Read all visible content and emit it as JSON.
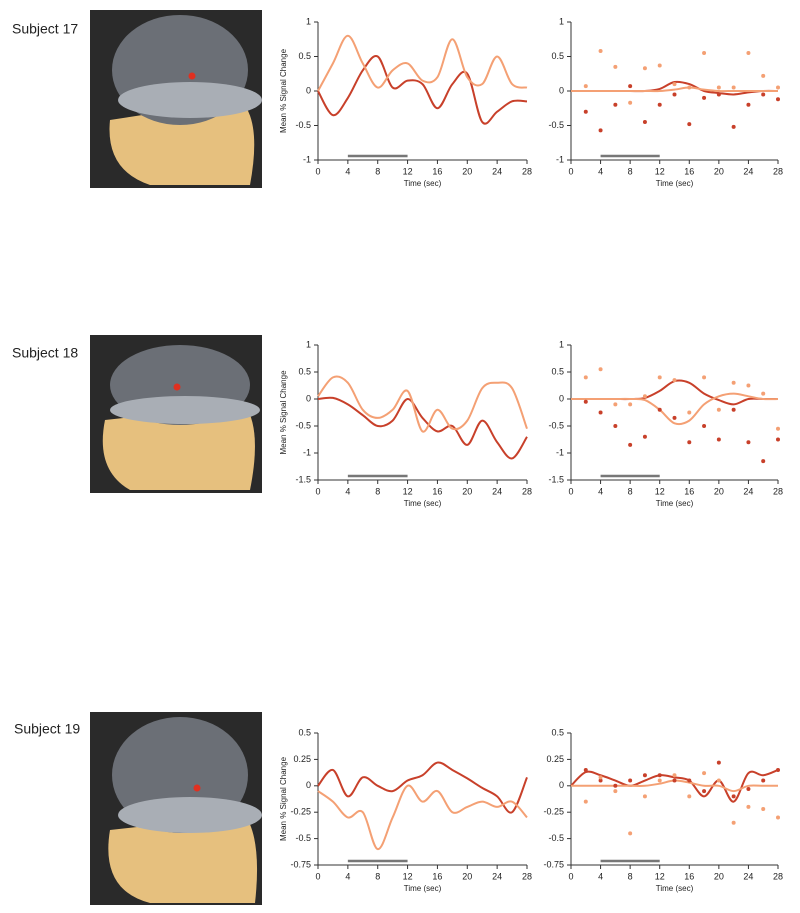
{
  "subjects": [
    "Subject 17",
    "Subject 18",
    "Subject 19"
  ],
  "chart_data": [
    {
      "type": "line",
      "xlabel": "Time (sec)",
      "ylabel": "Mean % Signal Change",
      "x": [
        0,
        2,
        4,
        6,
        8,
        10,
        12,
        14,
        16,
        18,
        20,
        22,
        24,
        26,
        28
      ],
      "xlim": [
        0,
        28
      ],
      "xticks": [
        0,
        4,
        8,
        12,
        16,
        20,
        24,
        28
      ],
      "ylim": [
        -1,
        1
      ],
      "yticks": [
        -1,
        -0.5,
        0,
        0.5,
        1
      ],
      "stimulus": [
        4,
        12
      ],
      "series": [
        {
          "color": "#c8402a",
          "mode": "line",
          "values": [
            0,
            -0.35,
            -0.1,
            0.3,
            0.5,
            0.05,
            0.15,
            0.1,
            -0.25,
            0.1,
            0.25,
            -0.45,
            -0.3,
            -0.15,
            -0.15
          ]
        },
        {
          "color": "#f4a074",
          "mode": "line",
          "values": [
            0,
            0.4,
            0.8,
            0.4,
            0.05,
            0.3,
            0.4,
            0.15,
            0.2,
            0.75,
            0.2,
            0.1,
            0.5,
            0.1,
            0.05
          ]
        }
      ]
    },
    {
      "type": "line",
      "xlabel": "Time (sec)",
      "x": [
        0,
        2,
        4,
        6,
        8,
        10,
        12,
        14,
        16,
        18,
        20,
        22,
        24,
        26,
        28
      ],
      "xlim": [
        0,
        28
      ],
      "xticks": [
        0,
        4,
        8,
        12,
        16,
        20,
        24,
        28
      ],
      "ylim": [
        -1,
        1
      ],
      "yticks": [
        -1,
        -0.5,
        0,
        0.5,
        1
      ],
      "stimulus": [
        4,
        12
      ],
      "series": [
        {
          "color": "#c8402a",
          "mode": "line",
          "values": [
            0,
            0,
            0,
            0,
            0,
            0,
            0.03,
            0.13,
            0.1,
            0,
            -0.03,
            -0.05,
            -0.02,
            0,
            0
          ]
        },
        {
          "color": "#f4a074",
          "mode": "line",
          "values": [
            0,
            0,
            0,
            0,
            0,
            0,
            0,
            0.02,
            0.05,
            0.02,
            0,
            0,
            0,
            0,
            0
          ]
        },
        {
          "color": "#c8402a",
          "mode": "markers",
          "values": [
            null,
            -0.3,
            -0.57,
            -0.2,
            0.07,
            -0.45,
            -0.2,
            -0.05,
            -0.48,
            -0.1,
            -0.05,
            -0.52,
            -0.2,
            -0.05,
            -0.12
          ]
        },
        {
          "color": "#f4a074",
          "mode": "markers",
          "values": [
            null,
            0.07,
            0.58,
            0.35,
            -0.17,
            0.33,
            0.37,
            0.1,
            0.05,
            0.55,
            0.05,
            0.05,
            0.55,
            0.22,
            0.05
          ]
        }
      ]
    },
    {
      "type": "line",
      "xlabel": "Time (sec)",
      "ylabel": "Mean % Signal Change",
      "x": [
        0,
        2,
        4,
        6,
        8,
        10,
        12,
        14,
        16,
        18,
        20,
        22,
        24,
        26,
        28
      ],
      "xlim": [
        0,
        28
      ],
      "xticks": [
        0,
        4,
        8,
        12,
        16,
        20,
        24,
        28
      ],
      "ylim": [
        -1.5,
        1
      ],
      "yticks": [
        -1.5,
        -1,
        -0.5,
        0,
        0.5,
        1
      ],
      "stimulus": [
        4,
        12
      ],
      "series": [
        {
          "color": "#c8402a",
          "mode": "line",
          "values": [
            0,
            0.02,
            -0.1,
            -0.3,
            -0.5,
            -0.4,
            0,
            -0.35,
            -0.6,
            -0.5,
            -0.85,
            -0.4,
            -0.8,
            -1.1,
            -0.7
          ]
        },
        {
          "color": "#f4a074",
          "mode": "line",
          "values": [
            0.05,
            0.4,
            0.3,
            -0.2,
            -0.35,
            -0.2,
            0.15,
            -0.6,
            -0.2,
            -0.55,
            -0.4,
            0.2,
            0.3,
            0.2,
            -0.55
          ]
        }
      ]
    },
    {
      "type": "line",
      "xlabel": "Time (sec)",
      "x": [
        0,
        2,
        4,
        6,
        8,
        10,
        12,
        14,
        16,
        18,
        20,
        22,
        24,
        26,
        28
      ],
      "xlim": [
        0,
        28
      ],
      "xticks": [
        0,
        4,
        8,
        12,
        16,
        20,
        24,
        28
      ],
      "ylim": [
        -1.5,
        1
      ],
      "yticks": [
        -1.5,
        -1,
        -0.5,
        0,
        0.5,
        1
      ],
      "stimulus": [
        4,
        12
      ],
      "series": [
        {
          "color": "#c8402a",
          "mode": "line",
          "values": [
            0,
            0,
            0,
            0,
            0,
            0.02,
            0.15,
            0.33,
            0.3,
            0.1,
            -0.02,
            -0.1,
            0,
            0,
            0
          ]
        },
        {
          "color": "#f4a074",
          "mode": "line",
          "values": [
            0,
            0,
            0,
            0,
            0,
            -0.02,
            -0.2,
            -0.45,
            -0.4,
            -0.1,
            0.05,
            0.1,
            0.05,
            0,
            0
          ]
        },
        {
          "color": "#c8402a",
          "mode": "markers",
          "values": [
            null,
            -0.05,
            -0.25,
            -0.5,
            -0.85,
            -0.7,
            -0.2,
            -0.35,
            -0.8,
            -0.5,
            -0.75,
            -0.2,
            -0.8,
            -1.15,
            -0.75
          ]
        },
        {
          "color": "#f4a074",
          "mode": "markers",
          "values": [
            null,
            0.4,
            0.55,
            -0.1,
            -0.1,
            0.05,
            0.4,
            0.35,
            -0.25,
            0.4,
            -0.2,
            0.3,
            0.25,
            0.1,
            -0.55
          ]
        }
      ]
    },
    {
      "type": "line",
      "xlabel": "Time (sec)",
      "ylabel": "Mean % Signal Change",
      "x": [
        0,
        2,
        4,
        6,
        8,
        10,
        12,
        14,
        16,
        18,
        20,
        22,
        24,
        26,
        28
      ],
      "xlim": [
        0,
        28
      ],
      "xticks": [
        0,
        4,
        8,
        12,
        16,
        20,
        24,
        28
      ],
      "ylim": [
        -0.75,
        0.5
      ],
      "yticks": [
        -0.75,
        -0.5,
        -0.25,
        0,
        0.25,
        0.5
      ],
      "stimulus": [
        4,
        12
      ],
      "series": [
        {
          "color": "#c8402a",
          "mode": "line",
          "values": [
            0,
            0.15,
            -0.1,
            0.08,
            0,
            -0.05,
            0.05,
            0.1,
            0.22,
            0.15,
            0.07,
            -0.02,
            -0.1,
            -0.25,
            0.08
          ]
        },
        {
          "color": "#f4a074",
          "mode": "line",
          "values": [
            -0.05,
            -0.15,
            -0.3,
            -0.25,
            -0.6,
            -0.3,
            0,
            -0.15,
            -0.05,
            -0.25,
            -0.2,
            -0.15,
            -0.2,
            -0.15,
            -0.3
          ]
        }
      ]
    },
    {
      "type": "line",
      "xlabel": "Time (sec)",
      "x": [
        0,
        2,
        4,
        6,
        8,
        10,
        12,
        14,
        16,
        18,
        20,
        22,
        24,
        26,
        28
      ],
      "xlim": [
        0,
        28
      ],
      "xticks": [
        0,
        4,
        8,
        12,
        16,
        20,
        24,
        28
      ],
      "ylim": [
        -0.75,
        0.5
      ],
      "yticks": [
        -0.75,
        -0.5,
        -0.25,
        0,
        0.25,
        0.5
      ],
      "stimulus": [
        4,
        12
      ],
      "series": [
        {
          "color": "#c8402a",
          "mode": "line",
          "values": [
            0,
            0.13,
            0.1,
            0.05,
            0,
            0.05,
            0.1,
            0.08,
            0.05,
            -0.1,
            0.05,
            -0.15,
            0.12,
            0.1,
            0.15
          ]
        },
        {
          "color": "#f4a074",
          "mode": "line",
          "values": [
            0,
            0,
            0,
            0,
            0,
            0,
            0.02,
            0.05,
            0.03,
            0,
            0,
            -0.05,
            0,
            0,
            0
          ]
        },
        {
          "color": "#c8402a",
          "mode": "markers",
          "values": [
            null,
            0.15,
            0.05,
            0,
            0.05,
            0.1,
            0.1,
            0.05,
            0.05,
            -0.05,
            0.22,
            -0.1,
            -0.03,
            0.05,
            0.15
          ]
        },
        {
          "color": "#f4a074",
          "mode": "markers",
          "values": [
            null,
            -0.15,
            0.08,
            -0.05,
            -0.45,
            -0.1,
            0.05,
            0.1,
            -0.1,
            0.12,
            0.05,
            -0.35,
            -0.2,
            -0.22,
            -0.3
          ]
        }
      ]
    }
  ]
}
